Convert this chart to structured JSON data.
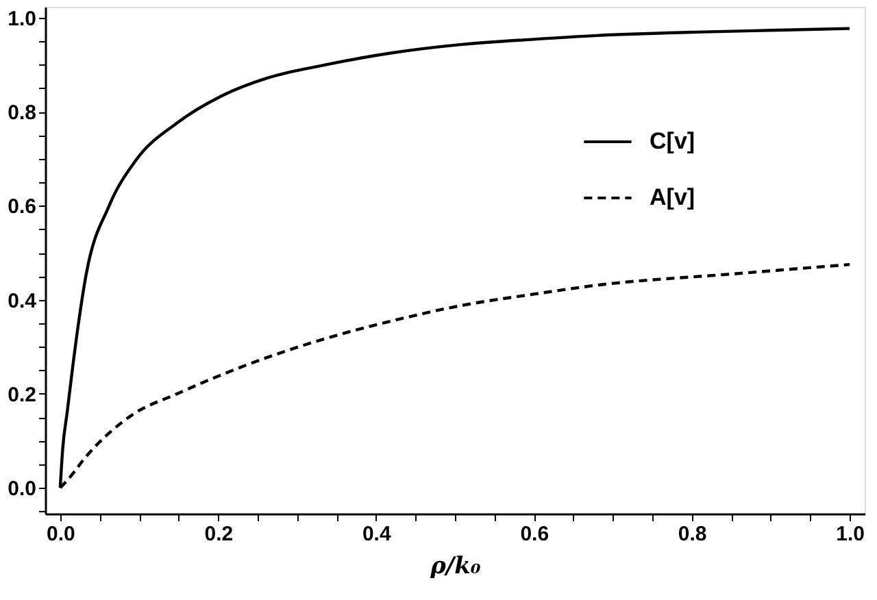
{
  "chart_data": {
    "type": "line",
    "xlabel": "ρ/k₀",
    "xlim": [
      -0.019,
      1.019
    ],
    "ylim": [
      -0.055,
      1.023
    ],
    "xticks": [
      {
        "value": 0,
        "label": "0.0"
      },
      {
        "value": 0.05,
        "label": null
      },
      {
        "value": 0.1,
        "label": null
      },
      {
        "value": 0.15,
        "label": null
      },
      0.2,
      {
        "value": 0.25,
        "label": null
      },
      {
        "value": 0.3,
        "label": null
      },
      {
        "value": 0.35,
        "label": null
      },
      0.4,
      {
        "value": 0.45,
        "label": null
      },
      {
        "value": 0.5,
        "label": null
      },
      {
        "value": 0.55,
        "label": null
      },
      0.6,
      {
        "value": 0.65,
        "label": null
      },
      {
        "value": 0.7,
        "label": null
      },
      {
        "value": 0.75,
        "label": null
      },
      0.8,
      {
        "value": 0.85,
        "label": null
      },
      {
        "value": 0.9,
        "label": null
      },
      {
        "value": 0.95,
        "label": null
      },
      {
        "value": 1,
        "label": "1.0"
      }
    ],
    "yticks": [
      {
        "value": -0.05,
        "label": null
      },
      {
        "value": 0,
        "label": "0.0"
      },
      {
        "value": 0.05,
        "label": null
      },
      {
        "value": 0.1,
        "label": null
      },
      {
        "value": 0.15,
        "label": null
      },
      0.2,
      {
        "value": 0.25,
        "label": null
      },
      {
        "value": 0.3,
        "label": null
      },
      {
        "value": 0.35,
        "label": null
      },
      0.4,
      {
        "value": 0.45,
        "label": null
      },
      {
        "value": 0.5,
        "label": null
      },
      {
        "value": 0.55,
        "label": null
      },
      0.6,
      {
        "value": 0.65,
        "label": null
      },
      {
        "value": 0.7,
        "label": null
      },
      {
        "value": 0.75,
        "label": null
      },
      0.8,
      {
        "value": 0.85,
        "label": null
      },
      {
        "value": 0.9,
        "label": null
      },
      {
        "value": 0.95,
        "label": null
      },
      {
        "value": 1,
        "label": "1.0"
      }
    ],
    "grid": false,
    "legend": "top right",
    "marker": "none",
    "series": [
      {
        "name": "C[v]",
        "color": "#000000",
        "line_style": "solid",
        "x": [
          0,
          0.003,
          0.009,
          0.016,
          0.033,
          0.062,
          0.096,
          0.148,
          0.205,
          0.263,
          0.337,
          0.42,
          0.509,
          0.6,
          0.68,
          0.8,
          0.9,
          1.0
        ],
        "values": [
          0,
          0.08,
          0.163,
          0.26,
          0.455,
          0.6,
          0.697,
          0.776,
          0.834,
          0.872,
          0.9,
          0.925,
          0.943,
          0.954,
          0.962,
          0.969,
          0.973,
          0.977
        ]
      },
      {
        "name": "A[v]",
        "color": "#000000",
        "line_style": "dashed",
        "x": [
          0,
          0.01,
          0.033,
          0.091,
          0.148,
          0.234,
          0.337,
          0.42,
          0.509,
          0.6,
          0.68,
          0.852,
          1.0
        ],
        "values": [
          0,
          0.018,
          0.067,
          0.155,
          0.2,
          0.26,
          0.318,
          0.355,
          0.388,
          0.412,
          0.431,
          0.455,
          0.475
        ]
      }
    ]
  }
}
